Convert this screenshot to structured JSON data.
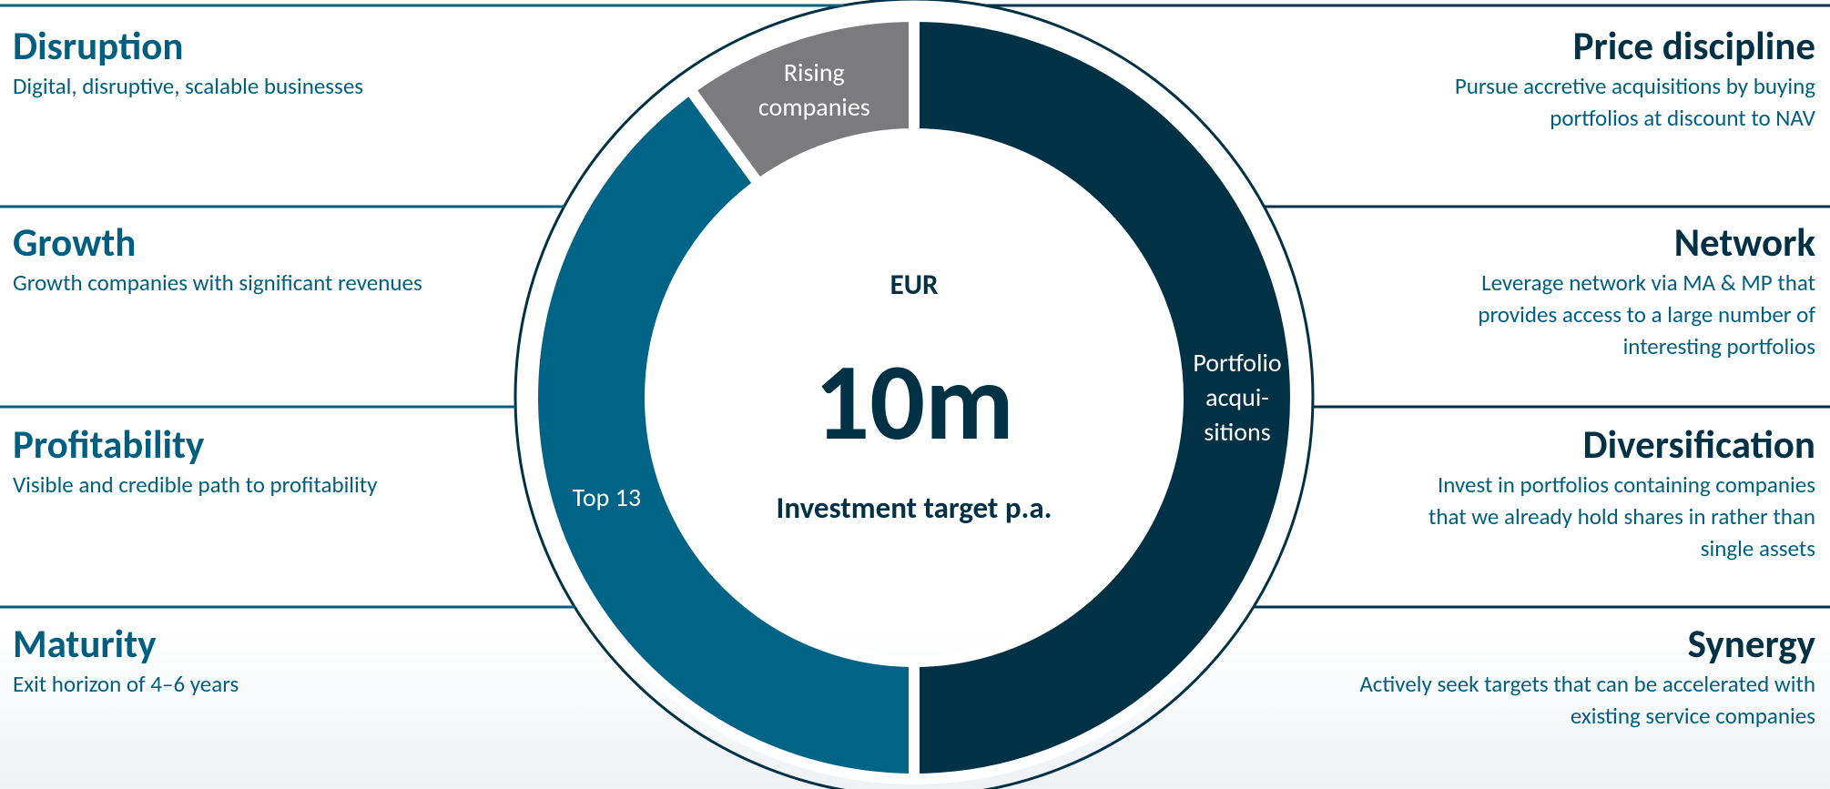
{
  "chart_data": {
    "type": "donut",
    "categories": [
      "Portfolio acqui- sitions",
      "Top 13",
      "Rising companies"
    ],
    "values": [
      50,
      40,
      10
    ],
    "colors": [
      "#003144",
      "#006487",
      "#7b7b7d"
    ],
    "center_texts": [
      "EUR",
      "10m",
      "Investment target p.a."
    ]
  },
  "left_items": [
    {
      "heading": "Disruption",
      "description": [
        "Digital, disruptive, scalable businesses"
      ]
    },
    {
      "heading": "Growth",
      "description": [
        "Growth companies with significant revenues"
      ]
    },
    {
      "heading": "Profitability",
      "description": [
        "Visible and credible path to profitability"
      ]
    },
    {
      "heading": "Maturity",
      "description": [
        "Exit horizon of 4–6 years"
      ]
    }
  ],
  "right_items": [
    {
      "heading": "Price discipline",
      "description": [
        "Pursue accretive acquisitions by buying",
        "portfolios at discount to NAV"
      ]
    },
    {
      "heading": "Network",
      "description": [
        "Leverage network via MA & MP that",
        "provides access to a large number of",
        "interesting portfolios"
      ]
    },
    {
      "heading": "Diversification",
      "description": [
        "Invest in portfolios containing companies",
        "that we already hold shares in rather than",
        "single assets"
      ]
    },
    {
      "heading": "Synergy",
      "description": [
        "Actively seek targets that can be accelerated with",
        "existing service companies"
      ]
    }
  ]
}
